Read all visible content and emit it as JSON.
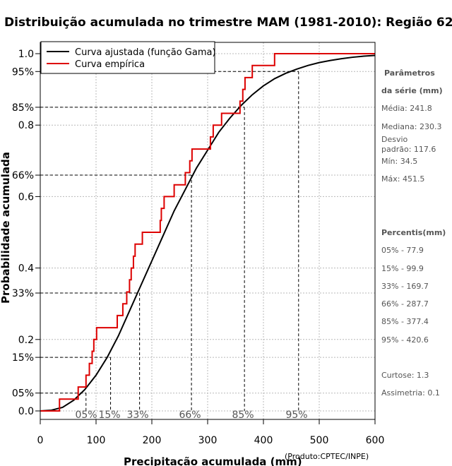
{
  "chart_data": {
    "type": "line",
    "title": "Distribuição acumulada no trimestre MAM (1981-2010): Região 62",
    "xlabel": "Precipitação acumulada (mm)",
    "ylabel": "Probabilidade acumulada",
    "credit": "(Produto:CPTEC/INPE)",
    "xlim": [
      0,
      600
    ],
    "ylim": [
      0,
      1
    ],
    "x_ticks": [
      0,
      100,
      200,
      300,
      400,
      500,
      600
    ],
    "y_ticks": [
      {
        "value": 0.0,
        "label": "0.0"
      },
      {
        "value": 0.05,
        "label": "05%"
      },
      {
        "value": 0.15,
        "label": "15%"
      },
      {
        "value": 0.2,
        "label": "0.2"
      },
      {
        "value": 0.33,
        "label": "33%"
      },
      {
        "value": 0.4,
        "label": "0.4"
      },
      {
        "value": 0.6,
        "label": "0.6"
      },
      {
        "value": 0.66,
        "label": "66%"
      },
      {
        "value": 0.8,
        "label": "0.8"
      },
      {
        "value": 0.85,
        "label": "85%"
      },
      {
        "value": 0.95,
        "label": "95%"
      },
      {
        "value": 1.0,
        "label": "1.0"
      }
    ],
    "grid": true,
    "legend": {
      "position": "top-left"
    },
    "series": [
      {
        "name": "Curva ajustada (função Gama)",
        "color": "#000000",
        "x": [
          0,
          20,
          40,
          60,
          80,
          100,
          120,
          140,
          160,
          180,
          200,
          220,
          240,
          260,
          280,
          300,
          320,
          340,
          360,
          380,
          400,
          420,
          440,
          460,
          480,
          500,
          520,
          540,
          560,
          580,
          600
        ],
        "values": [
          0.0,
          0.002,
          0.01,
          0.03,
          0.06,
          0.1,
          0.15,
          0.21,
          0.28,
          0.35,
          0.42,
          0.49,
          0.56,
          0.62,
          0.68,
          0.73,
          0.78,
          0.82,
          0.855,
          0.885,
          0.91,
          0.93,
          0.945,
          0.957,
          0.967,
          0.975,
          0.981,
          0.986,
          0.99,
          0.993,
          0.995
        ]
      },
      {
        "name": "Curva empírica",
        "color": "#dd0000",
        "type": "step",
        "x": [
          34.5,
          68,
          82,
          88,
          93,
          96,
          101,
          138,
          148,
          155,
          160,
          163,
          167,
          170,
          183,
          215,
          217,
          222,
          240,
          260,
          268,
          272,
          305,
          310,
          325,
          358,
          363,
          367,
          380,
          420,
          451.5,
          600
        ],
        "values": [
          0.033,
          0.067,
          0.1,
          0.133,
          0.167,
          0.2,
          0.233,
          0.267,
          0.3,
          0.333,
          0.367,
          0.4,
          0.433,
          0.467,
          0.5,
          0.533,
          0.567,
          0.6,
          0.633,
          0.667,
          0.7,
          0.733,
          0.767,
          0.8,
          0.833,
          0.867,
          0.9,
          0.933,
          0.967,
          1.0,
          1.0,
          1.0
        ]
      }
    ],
    "percentile_markers": [
      {
        "label": "05%",
        "p": 0.05,
        "x": 77.9
      },
      {
        "label": "15%",
        "p": 0.15,
        "x": 99.9
      },
      {
        "label": "33%",
        "p": 0.33,
        "x": 169.7
      },
      {
        "label": "66%",
        "p": 0.66,
        "x": 287.7
      },
      {
        "label": "85%",
        "p": 0.85,
        "x": 377.4
      },
      {
        "label": "95%",
        "p": 0.95,
        "x": 420.6
      }
    ],
    "percentile_lines": [
      {
        "p": 0.05,
        "x": 82
      },
      {
        "p": 0.15,
        "x": 126
      },
      {
        "p": 0.33,
        "x": 178
      },
      {
        "p": 0.66,
        "x": 271
      },
      {
        "p": 0.85,
        "x": 366
      },
      {
        "p": 0.95,
        "x": 463
      }
    ]
  },
  "side_panel": {
    "params_head_1": "Parâmetros",
    "params_head_2": "da série (mm)",
    "media": "Média: 241.8",
    "mediana": "Mediana: 230.3",
    "desvio_1": "Desvio",
    "desvio_2": "padrão: 117.6",
    "min": "Mín: 34.5",
    "max": "Máx: 451.5",
    "percentis_head": "Percentis(mm)",
    "p05": "05% - 77.9",
    "p15": "15% - 99.9",
    "p33": "33% - 169.7",
    "p66": "66% - 287.7",
    "p85": "85% - 377.4",
    "p95": "95% - 420.6",
    "curtose": "Curtose: 1.3",
    "assimetria": "Assimetria: 0.1"
  }
}
